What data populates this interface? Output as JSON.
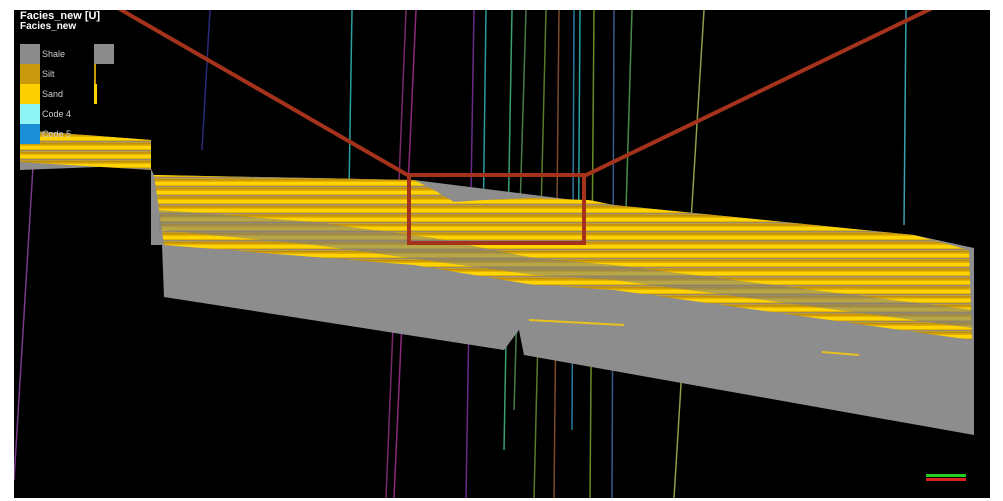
{
  "legend": {
    "title": "Facies_new [U]",
    "subtitle": "Facies_new",
    "items": [
      {
        "label": "Shale",
        "color": "#8c8c8c"
      },
      {
        "label": "Silt",
        "color": "#c99a0e"
      },
      {
        "label": "Sand",
        "color": "#ffd000"
      },
      {
        "label": "Code 4",
        "color": "#8ff4f4"
      },
      {
        "label": "Code 5",
        "color": "#1a8fd6"
      }
    ]
  },
  "colors": {
    "background": "#000000",
    "shale": "#8c8c8c",
    "sand": "#ffd000",
    "silt": "#c99a0e",
    "highlight_box": "#a5321a"
  },
  "scale_bar": {
    "label": "",
    "colors": [
      "#22cc22",
      "#dd2222"
    ]
  }
}
